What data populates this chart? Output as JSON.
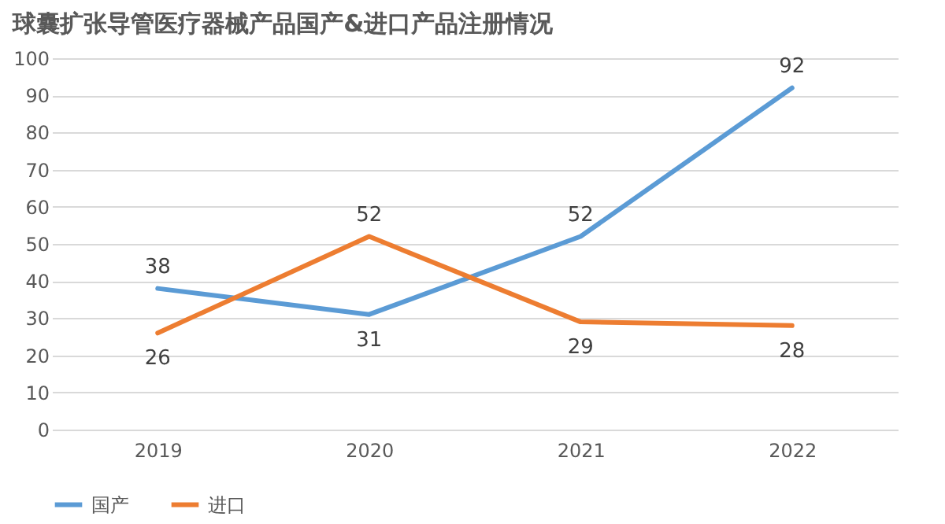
{
  "chart_data": {
    "type": "line",
    "title": "球囊扩张导管医疗器械产品国产&进口产品注册情况",
    "categories": [
      "2019",
      "2020",
      "2021",
      "2022"
    ],
    "series": [
      {
        "name": "国产",
        "color": "#5b9bd5",
        "values": [
          38,
          31,
          52,
          92
        ]
      },
      {
        "name": "进口",
        "color": "#ed7d31",
        "values": [
          26,
          52,
          29,
          28
        ]
      }
    ],
    "ylim": [
      0,
      100
    ],
    "yticks": [
      0,
      10,
      20,
      30,
      40,
      50,
      60,
      70,
      80,
      90,
      100
    ],
    "grid": "y",
    "legend": "bottom",
    "data_labels": true,
    "marker": "none",
    "line_style": "solid"
  }
}
